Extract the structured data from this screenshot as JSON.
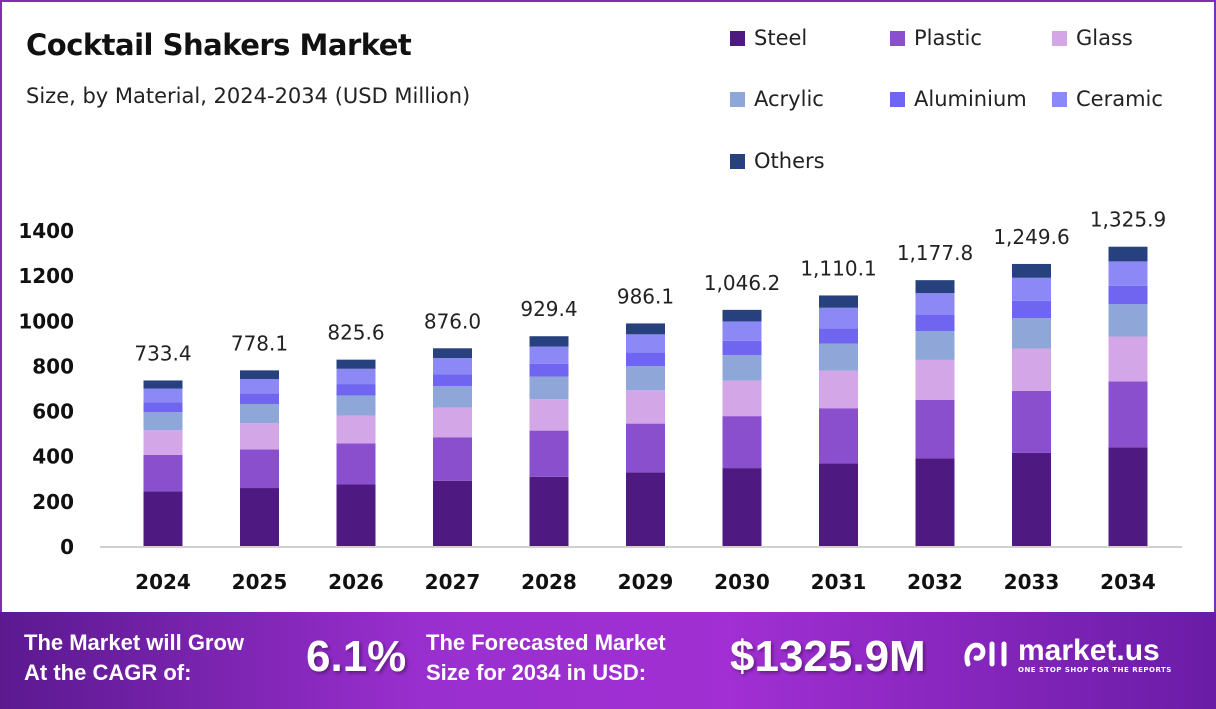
{
  "header": {
    "title": "Cocktail Shakers Market",
    "subtitle": "Size, by Material, 2024-2034 (USD Million)"
  },
  "chart_data": {
    "type": "bar",
    "stacked": true,
    "title": "Cocktail Shakers Market",
    "subtitle": "Size, by Material, 2024-2034 (USD Million)",
    "xlabel": "",
    "ylabel": "",
    "ylim": [
      0,
      1400
    ],
    "yticks": [
      0,
      200,
      400,
      600,
      800,
      1000,
      1200,
      1400
    ],
    "grid": false,
    "legend_position": "top-right",
    "categories": [
      "2024",
      "2025",
      "2026",
      "2027",
      "2028",
      "2029",
      "2030",
      "2031",
      "2032",
      "2033",
      "2034"
    ],
    "totals": [
      733.4,
      778.1,
      825.6,
      876.0,
      929.4,
      986.1,
      1046.2,
      1110.1,
      1177.8,
      1249.6,
      1325.9
    ],
    "total_labels": [
      "733.4",
      "778.1",
      "825.6",
      "876.0",
      "929.4",
      "986.1",
      "1,046.2",
      "1,110.1",
      "1,177.8",
      "1,249.6",
      "1,325.9"
    ],
    "series": [
      {
        "name": "Steel",
        "color": "#4e1a82",
        "values": [
          242.0,
          256.8,
          272.4,
          289.1,
          306.7,
          325.4,
          345.2,
          366.3,
          388.7,
          412.4,
          437.5
        ]
      },
      {
        "name": "Plastic",
        "color": "#8a4fcc",
        "values": [
          161.3,
          171.2,
          181.6,
          192.7,
          204.5,
          216.9,
          230.2,
          244.2,
          259.1,
          274.9,
          291.7
        ]
      },
      {
        "name": "Glass",
        "color": "#d3a6e8",
        "values": [
          110.0,
          116.7,
          123.8,
          131.4,
          139.4,
          147.9,
          156.9,
          166.5,
          176.7,
          187.4,
          198.9
        ]
      },
      {
        "name": "Acrylic",
        "color": "#8fa6d8",
        "values": [
          79.2,
          84.0,
          89.2,
          94.6,
          100.4,
          106.5,
          113.0,
          119.9,
          127.2,
          135.0,
          143.2
        ]
      },
      {
        "name": "Aluminium",
        "color": "#7065f0",
        "values": [
          44.7,
          47.5,
          50.4,
          53.4,
          56.7,
          60.2,
          63.8,
          67.7,
          71.8,
          76.2,
          80.9
        ]
      },
      {
        "name": "Ceramic",
        "color": "#8c88f5",
        "values": [
          60.1,
          63.8,
          67.7,
          71.8,
          76.2,
          80.9,
          85.8,
          91.0,
          96.6,
          102.5,
          108.7
        ]
      },
      {
        "name": "Others",
        "color": "#27407e",
        "values": [
          36.1,
          38.1,
          40.5,
          42.9,
          45.5,
          48.3,
          51.3,
          54.4,
          57.7,
          61.2,
          65.0
        ]
      }
    ]
  },
  "footer": {
    "cagr_label_line1": "The Market will Grow",
    "cagr_label_line2": "At the CAGR of:",
    "cagr_value": "6.1%",
    "forecast_label_line1": "The Forecasted Market",
    "forecast_label_line2": "Size for 2034 in USD:",
    "forecast_value": "$1325.9M",
    "brand_name": "market.us",
    "brand_tagline": "ONE STOP SHOP FOR THE REPORTS"
  },
  "colors": {
    "border": "#7b2fb5",
    "footer_bg": "#9a2fcf"
  }
}
